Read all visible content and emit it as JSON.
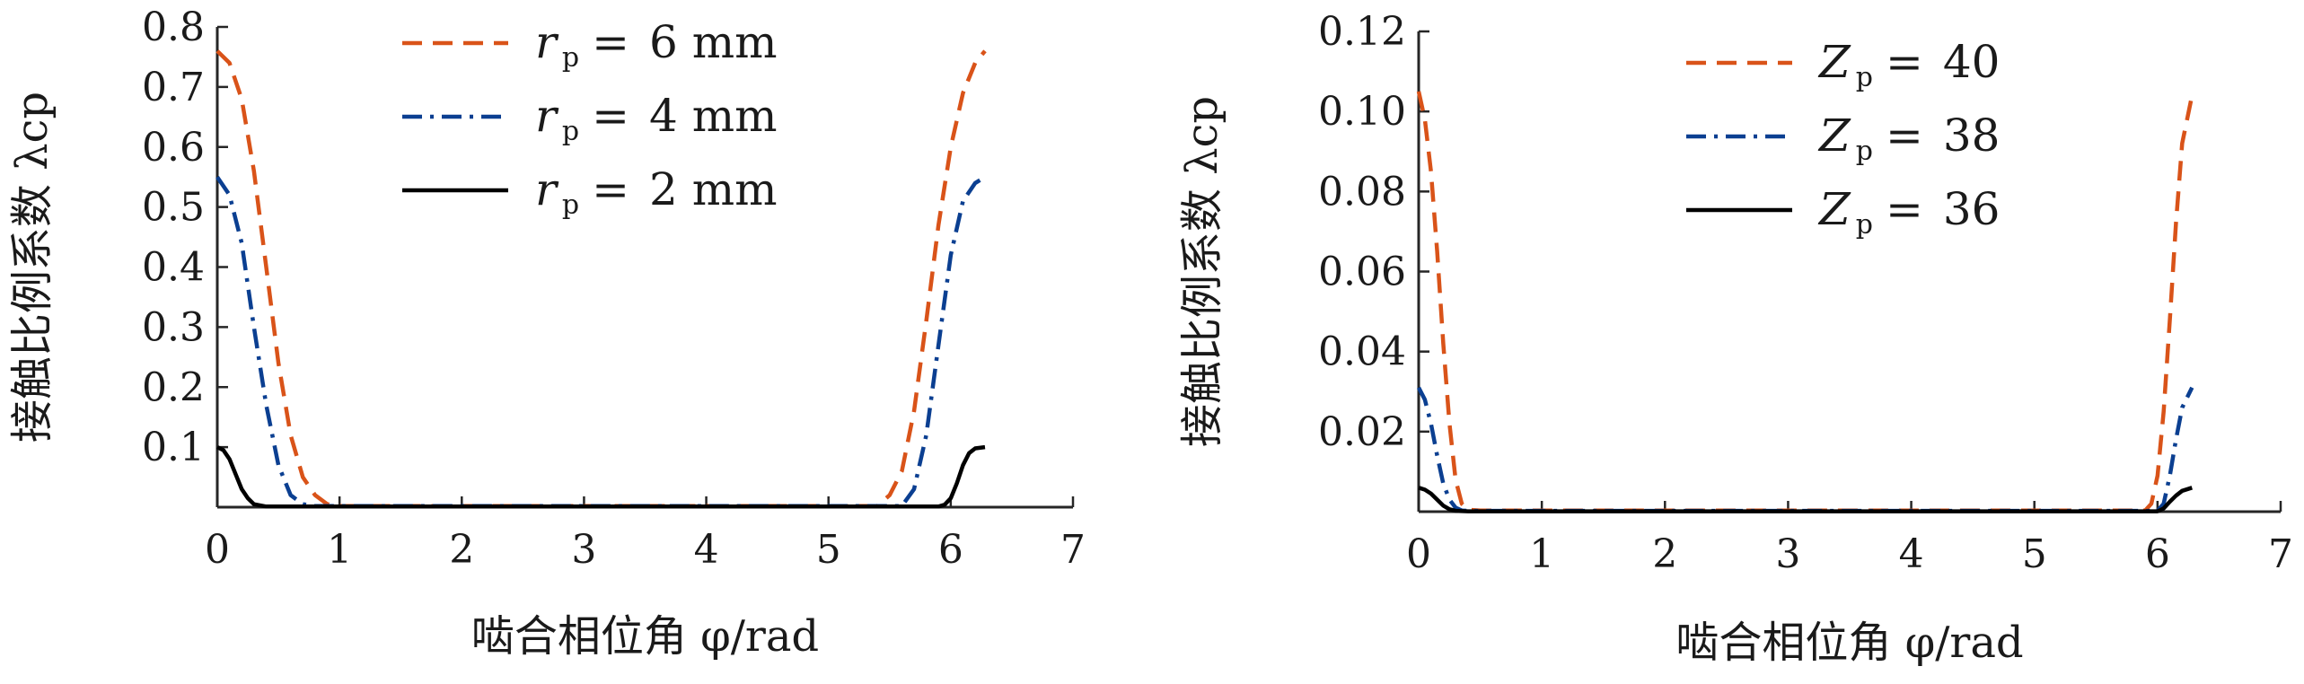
{
  "chart_data": [
    {
      "type": "line",
      "xlabel": "啮合相位角 φ/rad",
      "ylabel": "接触比例系数 λcp",
      "xlim": [
        0,
        7
      ],
      "ylim": [
        0,
        0.8
      ],
      "xticks": [
        "0",
        "1",
        "2",
        "3",
        "4",
        "5",
        "6",
        "7"
      ],
      "yticks": [
        "0.1",
        "0.2",
        "0.3",
        "0.4",
        "0.5",
        "0.6",
        "0.7",
        "0.8"
      ],
      "legend_position": "top-center",
      "series": [
        {
          "name": "r_p = 6 mm",
          "legend_var": "r",
          "legend_sub": "p",
          "legend_rhs": "6 mm",
          "color": "#d95319",
          "style": "dashed",
          "x": [
            0,
            0.1,
            0.2,
            0.3,
            0.4,
            0.5,
            0.6,
            0.7,
            0.8,
            0.9,
            1.0,
            5.4,
            5.5,
            5.6,
            5.7,
            5.8,
            5.9,
            6.0,
            6.1,
            6.2,
            6.28
          ],
          "y": [
            0.76,
            0.74,
            0.68,
            0.56,
            0.4,
            0.24,
            0.12,
            0.05,
            0.02,
            0.005,
            0.002,
            0.002,
            0.02,
            0.06,
            0.16,
            0.31,
            0.47,
            0.6,
            0.69,
            0.74,
            0.76
          ]
        },
        {
          "name": "r_p = 4 mm",
          "legend_var": "r",
          "legend_sub": "p",
          "legend_rhs": "4 mm",
          "color": "#0b3f91",
          "style": "dashdot",
          "x": [
            0,
            0.1,
            0.2,
            0.3,
            0.4,
            0.5,
            0.6,
            0.7,
            0.8,
            5.6,
            5.7,
            5.8,
            5.9,
            6.0,
            6.1,
            6.2,
            6.28
          ],
          "y": [
            0.55,
            0.52,
            0.44,
            0.3,
            0.17,
            0.07,
            0.02,
            0.005,
            0.002,
            0.002,
            0.03,
            0.12,
            0.27,
            0.42,
            0.51,
            0.54,
            0.55
          ]
        },
        {
          "name": "r_p = 2 mm",
          "legend_var": "r",
          "legend_sub": "p",
          "legend_rhs": "2 mm",
          "color": "#000000",
          "style": "solid",
          "x": [
            0,
            0.05,
            0.1,
            0.15,
            0.2,
            0.25,
            0.3,
            0.4,
            0.5,
            0.6,
            5.9,
            5.95,
            6.0,
            6.05,
            6.1,
            6.15,
            6.2,
            6.28
          ],
          "y": [
            0.1,
            0.095,
            0.08,
            0.055,
            0.03,
            0.015,
            0.005,
            0.001,
            0.001,
            0.001,
            0.001,
            0.004,
            0.015,
            0.04,
            0.07,
            0.09,
            0.098,
            0.1
          ]
        }
      ]
    },
    {
      "type": "line",
      "xlabel": "啮合相位角 φ/rad",
      "ylabel": "接触比例系数 λcp",
      "xlim": [
        0,
        7
      ],
      "ylim": [
        0,
        0.12
      ],
      "xticks": [
        "0",
        "1",
        "2",
        "3",
        "4",
        "5",
        "6",
        "7"
      ],
      "yticks": [
        "0.02",
        "0.04",
        "0.06",
        "0.08",
        "0.10",
        "0.12"
      ],
      "legend_position": "top-center",
      "series": [
        {
          "name": "Z_p = 40",
          "legend_var": "Z",
          "legend_sub": "p",
          "legend_rhs": "40",
          "color": "#d95319",
          "style": "dashed",
          "x": [
            0,
            0.05,
            0.1,
            0.15,
            0.2,
            0.25,
            0.3,
            0.35,
            0.4,
            0.5,
            5.9,
            5.95,
            6.0,
            6.05,
            6.1,
            6.15,
            6.2,
            6.28
          ],
          "y": [
            0.105,
            0.098,
            0.085,
            0.065,
            0.042,
            0.022,
            0.008,
            0.002,
            0.0005,
            0.0003,
            0.0003,
            0.002,
            0.009,
            0.025,
            0.048,
            0.072,
            0.092,
            0.104
          ]
        },
        {
          "name": "Z_p = 38",
          "legend_var": "Z",
          "legend_sub": "p",
          "legend_rhs": "38",
          "color": "#0b3f91",
          "style": "dashdot",
          "x": [
            0,
            0.05,
            0.1,
            0.15,
            0.2,
            0.25,
            0.3,
            0.35,
            0.4,
            6.0,
            6.05,
            6.1,
            6.15,
            6.2,
            6.28
          ],
          "y": [
            0.031,
            0.028,
            0.022,
            0.014,
            0.007,
            0.003,
            0.001,
            0.0003,
            0.0002,
            0.0002,
            0.002,
            0.009,
            0.018,
            0.026,
            0.031
          ]
        },
        {
          "name": "Z_p = 36",
          "legend_var": "Z",
          "legend_sub": "p",
          "legend_rhs": "36",
          "color": "#000000",
          "style": "solid",
          "x": [
            0,
            0.05,
            0.1,
            0.15,
            0.2,
            0.25,
            0.3,
            0.4,
            6.0,
            6.05,
            6.1,
            6.15,
            6.2,
            6.28
          ],
          "y": [
            0.006,
            0.0055,
            0.0045,
            0.003,
            0.0015,
            0.0006,
            0.0002,
            0.0001,
            0.0001,
            0.0008,
            0.0025,
            0.004,
            0.0052,
            0.006
          ]
        }
      ]
    }
  ]
}
